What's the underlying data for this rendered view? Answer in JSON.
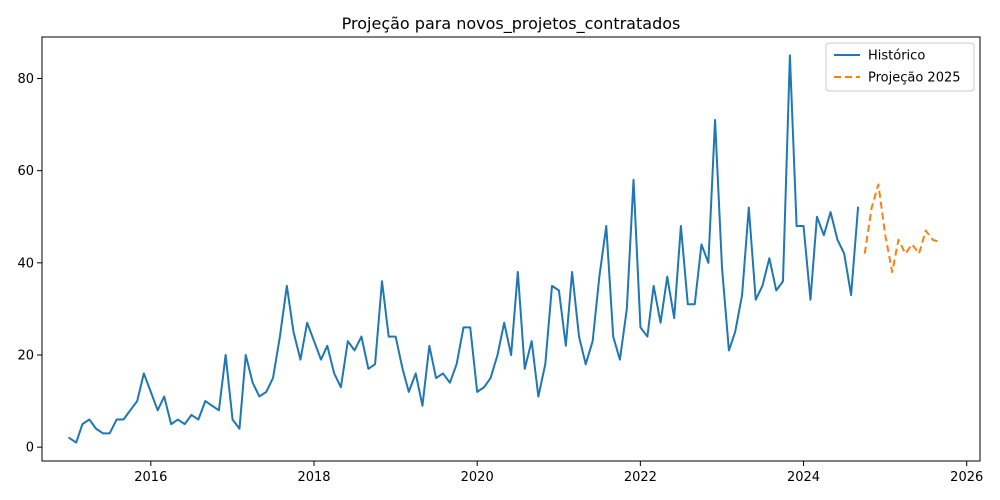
{
  "chart_data": {
    "type": "line",
    "title": "Projeção para novos_projetos_contratados",
    "xlabel": "",
    "ylabel": "",
    "xlim": [
      "2014-09-01",
      "2026-03-01"
    ],
    "ylim": [
      -3,
      89
    ],
    "x_ticks": [
      2016,
      2018,
      2020,
      2022,
      2024,
      2026
    ],
    "y_ticks": [
      0,
      20,
      40,
      60,
      80
    ],
    "grid": false,
    "legend": "top-right",
    "series": [
      {
        "name": "Histórico",
        "color": "#1f77b4",
        "style": "solid",
        "points": [
          [
            "2015-01-01",
            2
          ],
          [
            "2015-02-01",
            1
          ],
          [
            "2015-03-01",
            5
          ],
          [
            "2015-04-01",
            6
          ],
          [
            "2015-05-01",
            4
          ],
          [
            "2015-06-01",
            3
          ],
          [
            "2015-07-01",
            3
          ],
          [
            "2015-08-01",
            6
          ],
          [
            "2015-09-01",
            6
          ],
          [
            "2015-10-01",
            8
          ],
          [
            "2015-11-01",
            10
          ],
          [
            "2015-12-01",
            16
          ],
          [
            "2016-01-01",
            12
          ],
          [
            "2016-02-01",
            8
          ],
          [
            "2016-03-01",
            11
          ],
          [
            "2016-04-01",
            5
          ],
          [
            "2016-05-01",
            6
          ],
          [
            "2016-06-01",
            5
          ],
          [
            "2016-07-01",
            7
          ],
          [
            "2016-08-01",
            6
          ],
          [
            "2016-09-01",
            10
          ],
          [
            "2016-10-01",
            9
          ],
          [
            "2016-11-01",
            8
          ],
          [
            "2016-12-01",
            20
          ],
          [
            "2017-01-01",
            6
          ],
          [
            "2017-02-01",
            4
          ],
          [
            "2017-03-01",
            20
          ],
          [
            "2017-04-01",
            14
          ],
          [
            "2017-05-01",
            11
          ],
          [
            "2017-06-01",
            12
          ],
          [
            "2017-07-01",
            15
          ],
          [
            "2017-08-01",
            24
          ],
          [
            "2017-09-01",
            35
          ],
          [
            "2017-10-01",
            25
          ],
          [
            "2017-11-01",
            19
          ],
          [
            "2017-12-01",
            27
          ],
          [
            "2018-01-01",
            23
          ],
          [
            "2018-02-01",
            19
          ],
          [
            "2018-03-01",
            22
          ],
          [
            "2018-04-01",
            16
          ],
          [
            "2018-05-01",
            13
          ],
          [
            "2018-06-01",
            23
          ],
          [
            "2018-07-01",
            21
          ],
          [
            "2018-08-01",
            24
          ],
          [
            "2018-09-01",
            17
          ],
          [
            "2018-10-01",
            18
          ],
          [
            "2018-11-01",
            36
          ],
          [
            "2018-12-01",
            24
          ],
          [
            "2019-01-01",
            24
          ],
          [
            "2019-02-01",
            17
          ],
          [
            "2019-03-01",
            12
          ],
          [
            "2019-04-01",
            16
          ],
          [
            "2019-05-01",
            9
          ],
          [
            "2019-06-01",
            22
          ],
          [
            "2019-07-01",
            15
          ],
          [
            "2019-08-01",
            16
          ],
          [
            "2019-09-01",
            14
          ],
          [
            "2019-10-01",
            18
          ],
          [
            "2019-11-01",
            26
          ],
          [
            "2019-12-01",
            26
          ],
          [
            "2020-01-01",
            12
          ],
          [
            "2020-02-01",
            13
          ],
          [
            "2020-03-01",
            15
          ],
          [
            "2020-04-01",
            20
          ],
          [
            "2020-05-01",
            27
          ],
          [
            "2020-06-01",
            20
          ],
          [
            "2020-07-01",
            38
          ],
          [
            "2020-08-01",
            17
          ],
          [
            "2020-09-01",
            23
          ],
          [
            "2020-10-01",
            11
          ],
          [
            "2020-11-01",
            18
          ],
          [
            "2020-12-01",
            35
          ],
          [
            "2021-01-01",
            34
          ],
          [
            "2021-02-01",
            22
          ],
          [
            "2021-03-01",
            38
          ],
          [
            "2021-04-01",
            24
          ],
          [
            "2021-05-01",
            18
          ],
          [
            "2021-06-01",
            23
          ],
          [
            "2021-07-01",
            37
          ],
          [
            "2021-08-01",
            48
          ],
          [
            "2021-09-01",
            24
          ],
          [
            "2021-10-01",
            19
          ],
          [
            "2021-11-01",
            30
          ],
          [
            "2021-12-01",
            58
          ],
          [
            "2022-01-01",
            26
          ],
          [
            "2022-02-01",
            24
          ],
          [
            "2022-03-01",
            35
          ],
          [
            "2022-04-01",
            27
          ],
          [
            "2022-05-01",
            37
          ],
          [
            "2022-06-01",
            28
          ],
          [
            "2022-07-01",
            48
          ],
          [
            "2022-08-01",
            31
          ],
          [
            "2022-09-01",
            31
          ],
          [
            "2022-10-01",
            44
          ],
          [
            "2022-11-01",
            40
          ],
          [
            "2022-12-01",
            71
          ],
          [
            "2023-01-01",
            39
          ],
          [
            "2023-02-01",
            21
          ],
          [
            "2023-03-01",
            25
          ],
          [
            "2023-04-01",
            33
          ],
          [
            "2023-05-01",
            52
          ],
          [
            "2023-06-01",
            32
          ],
          [
            "2023-07-01",
            35
          ],
          [
            "2023-08-01",
            41
          ],
          [
            "2023-09-01",
            34
          ],
          [
            "2023-10-01",
            36
          ],
          [
            "2023-11-01",
            85
          ],
          [
            "2023-12-01",
            48
          ],
          [
            "2024-01-01",
            48
          ],
          [
            "2024-02-01",
            32
          ],
          [
            "2024-03-01",
            50
          ],
          [
            "2024-04-01",
            46
          ],
          [
            "2024-05-01",
            51
          ],
          [
            "2024-06-01",
            45
          ],
          [
            "2024-07-01",
            42
          ],
          [
            "2024-08-01",
            33
          ],
          [
            "2024-09-01",
            52
          ]
        ]
      },
      {
        "name": "Projeção 2025",
        "color": "#ff7f0e",
        "style": "dashed",
        "points": [
          [
            "2024-10-01",
            42
          ],
          [
            "2024-11-01",
            52
          ],
          [
            "2024-12-01",
            57
          ],
          [
            "2025-01-01",
            46
          ],
          [
            "2025-02-01",
            38
          ],
          [
            "2025-03-01",
            45
          ],
          [
            "2025-04-01",
            42
          ],
          [
            "2025-05-01",
            44
          ],
          [
            "2025-06-01",
            42
          ],
          [
            "2025-07-01",
            47
          ],
          [
            "2025-08-01",
            45
          ],
          [
            "2025-09-01",
            44.5
          ]
        ]
      }
    ]
  }
}
